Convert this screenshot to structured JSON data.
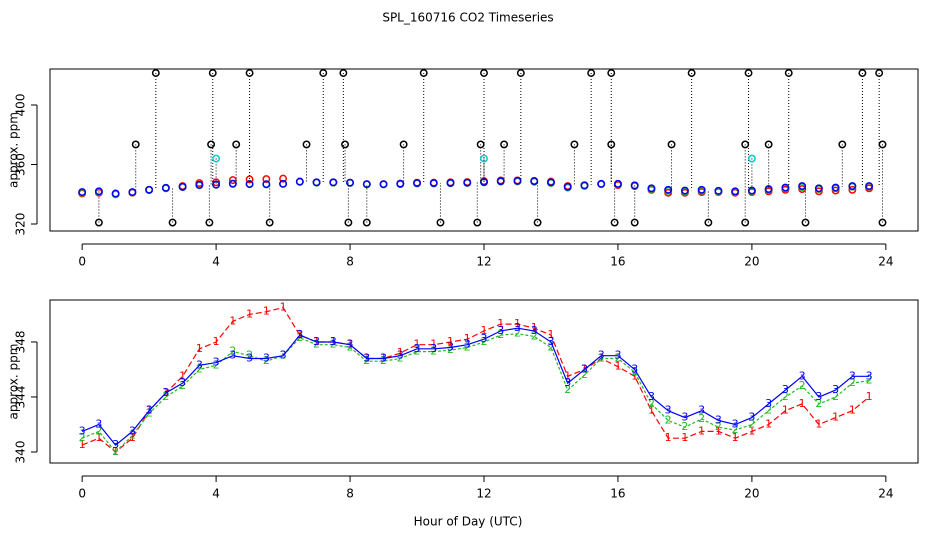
{
  "chart_data": [
    {
      "type": "scatter",
      "title": "SPL_160716  CO2 Timeseries",
      "ylabel": "approx. ppm",
      "xlim": [
        -0.96,
        24.96
      ],
      "xticks": [
        0,
        4,
        8,
        12,
        16,
        20,
        24
      ],
      "ylim": [
        315.3,
        424.2
      ],
      "yticks": [
        320,
        360,
        400
      ],
      "x": [
        0,
        0.5,
        1,
        1.5,
        2,
        2.5,
        3,
        3.5,
        4,
        4.5,
        5,
        5.5,
        6,
        6.5,
        7,
        7.5,
        8,
        8.5,
        9,
        9.5,
        10,
        10.5,
        11,
        11.5,
        12,
        12.5,
        13,
        13.5,
        14,
        14.5,
        15,
        15.5,
        16,
        16.5,
        17,
        17.5,
        18,
        18.5,
        19,
        19.5,
        20,
        20.5,
        21,
        21.5,
        22,
        22.5,
        23,
        23.5
      ],
      "series": [
        {
          "color": "#ff0000",
          "values": [
            340.5,
            341,
            340,
            341,
            343,
            344.3,
            345.5,
            347.5,
            348,
            349.5,
            350,
            350.2,
            350.5,
            348.5,
            348,
            348,
            347.8,
            346.8,
            346.8,
            347.2,
            347.8,
            347.8,
            348,
            348.2,
            348.8,
            349.3,
            349.3,
            349,
            348.5,
            345.5,
            346,
            346.8,
            346.2,
            345.5,
            343,
            341,
            341,
            341.5,
            341.5,
            341,
            341.5,
            342,
            343,
            343.5,
            342,
            342.5,
            343,
            344
          ]
        },
        {
          "color": "#22bb22",
          "values": [
            341,
            341.5,
            340,
            341.2,
            342.8,
            344,
            344.8,
            346,
            346.3,
            347.3,
            347,
            346.6,
            347,
            348.3,
            347.8,
            347.8,
            347.6,
            346.6,
            346.6,
            346.8,
            347.3,
            347.3,
            347.4,
            347.6,
            348,
            348.5,
            348.6,
            348.4,
            347.6,
            344.5,
            345.6,
            346.8,
            346.8,
            345.8,
            343.5,
            342.3,
            341.8,
            342.4,
            341.8,
            341.6,
            342,
            343,
            344,
            344.8,
            343.5,
            344,
            345,
            345.2
          ]
        },
        {
          "color": "#0000ff",
          "values": [
            341.5,
            342,
            340.5,
            341.5,
            343,
            344.3,
            345,
            346.3,
            346.5,
            347,
            346.8,
            346.8,
            347,
            348.5,
            348,
            348,
            347.8,
            346.8,
            346.8,
            347,
            347.5,
            347.5,
            347.6,
            347.8,
            348.2,
            348.8,
            349,
            348.8,
            348,
            345,
            346,
            347,
            347,
            346,
            344,
            343,
            342.5,
            343,
            342.3,
            342,
            342.5,
            343.5,
            344.5,
            345.5,
            344,
            344.5,
            345.5,
            345.5
          ]
        },
        {
          "color": "#000000",
          "x": [
            2.2,
            3.9,
            5.0,
            7.2,
            7.8,
            10.2,
            12.0,
            13.1,
            15.2,
            15.8,
            18.2,
            19.9,
            21.1,
            23.3,
            23.8,
            1.6,
            3.85,
            4.6,
            6.7,
            7.85,
            9.6,
            11.9,
            12.6,
            14.7,
            15.8,
            17.6,
            19.8,
            20.5,
            22.7,
            23.9,
            0.5,
            2.7,
            3.8,
            5.6,
            7.95,
            8.5,
            10.7,
            11.8,
            13.6,
            15.9,
            16.5,
            18.7,
            19.8,
            21.6,
            23.9
          ],
          "values": [
            421.5,
            421.5,
            421.5,
            421.5,
            421.5,
            421.5,
            421.5,
            421.5,
            421.5,
            421.5,
            421.5,
            421.5,
            421.5,
            421.5,
            421.5,
            373.5,
            373.5,
            373.5,
            373.5,
            373.5,
            373.5,
            373.5,
            373.5,
            373.5,
            373.5,
            373.5,
            373.5,
            373.5,
            373.5,
            373.5,
            321,
            321,
            321,
            321,
            321,
            321,
            321,
            321,
            321,
            321,
            321,
            321,
            321,
            321,
            321
          ]
        },
        {
          "color": "#00cccc",
          "x": [
            4.0,
            12.0,
            20.0
          ],
          "values": [
            364,
            364,
            364
          ]
        }
      ]
    },
    {
      "type": "line",
      "ylabel": "approx. ppm",
      "xlabel": "Hour of Day (UTC)",
      "xlim": [
        -0.96,
        24.96
      ],
      "xticks": [
        0,
        4,
        8,
        12,
        16,
        20,
        24
      ],
      "ylim": [
        339.2,
        351.05
      ],
      "yticks": [
        340,
        344,
        348
      ],
      "x": [
        0,
        0.5,
        1,
        1.5,
        2,
        2.5,
        3,
        3.5,
        4,
        4.5,
        5,
        5.5,
        6,
        6.5,
        7,
        7.5,
        8,
        8.5,
        9,
        9.5,
        10,
        10.5,
        11,
        11.5,
        12,
        12.5,
        13,
        13.5,
        14,
        14.5,
        15,
        15.5,
        16,
        16.5,
        17,
        17.5,
        18,
        18.5,
        19,
        19.5,
        20,
        20.5,
        21,
        21.5,
        22,
        22.5,
        23,
        23.5
      ],
      "series": [
        {
          "color": "#ff0000",
          "marker": "1",
          "values": [
            340.5,
            341,
            340,
            341,
            343,
            344.3,
            345.5,
            347.5,
            348,
            349.5,
            350,
            350.2,
            350.5,
            348.5,
            348,
            348,
            347.8,
            346.8,
            346.8,
            347.2,
            347.8,
            347.8,
            348,
            348.2,
            348.8,
            349.3,
            349.3,
            349,
            348.5,
            345.5,
            346,
            346.8,
            346.2,
            345.5,
            343,
            341,
            341,
            341.5,
            341.5,
            341,
            341.5,
            342,
            343,
            343.5,
            342,
            342.5,
            343,
            344
          ]
        },
        {
          "color": "#22bb22",
          "marker": "2",
          "values": [
            341,
            341.5,
            340,
            341.2,
            342.8,
            344,
            344.8,
            346,
            346.3,
            347.3,
            347,
            346.6,
            347,
            348.3,
            347.8,
            347.8,
            347.6,
            346.6,
            346.6,
            346.8,
            347.3,
            347.3,
            347.4,
            347.6,
            348,
            348.5,
            348.6,
            348.4,
            347.6,
            344.5,
            345.6,
            346.8,
            346.8,
            345.8,
            343.5,
            342.3,
            341.8,
            342.4,
            341.8,
            341.6,
            342,
            343,
            344,
            344.8,
            343.5,
            344,
            345,
            345.2
          ]
        },
        {
          "color": "#0000ff",
          "marker": "3",
          "values": [
            341.5,
            342,
            340.5,
            341.5,
            343,
            344.3,
            345,
            346.3,
            346.5,
            347,
            346.8,
            346.8,
            347,
            348.5,
            348,
            348,
            347.8,
            346.8,
            346.8,
            347,
            347.5,
            347.5,
            347.6,
            347.8,
            348.2,
            348.8,
            349,
            348.8,
            348,
            345,
            346,
            347,
            347,
            346,
            344,
            343,
            342.5,
            343,
            342.3,
            342,
            342.5,
            343.5,
            344.5,
            345.5,
            344,
            344.5,
            345.5,
            345.5
          ]
        }
      ]
    }
  ]
}
